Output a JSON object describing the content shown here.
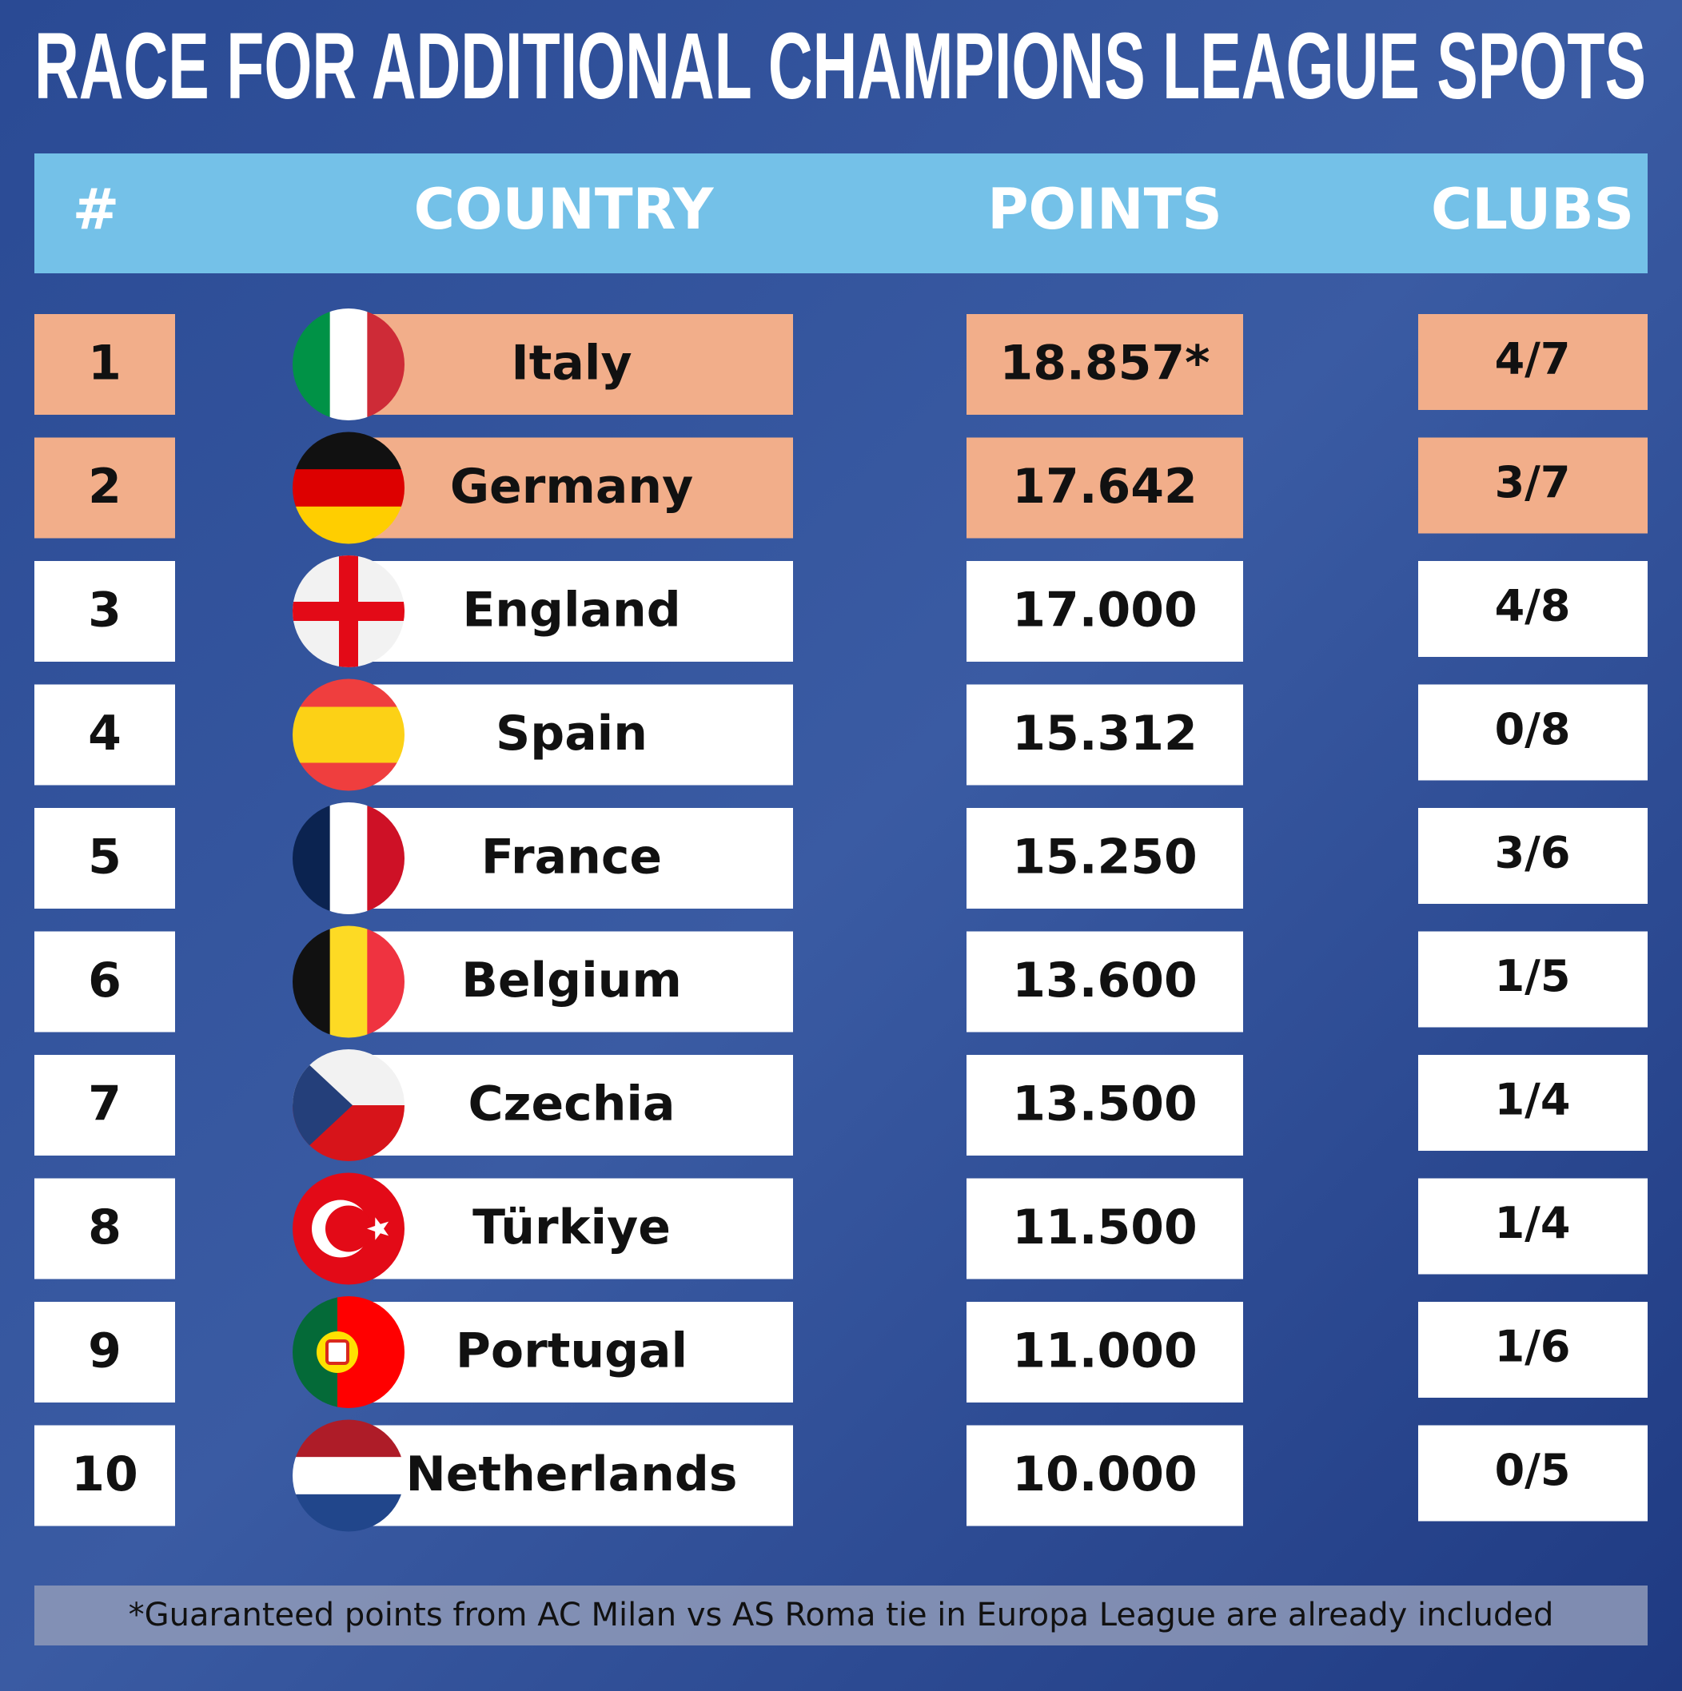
{
  "header": {
    "title": "RACE FOR ADDITIONAL CHAMPIONS LEAGUE SPOTS"
  },
  "table": {
    "columns": [
      "#",
      "COUNTRY",
      "POINTS",
      "CLUBS"
    ],
    "rows": [
      {
        "rank": 1,
        "country": "Italy",
        "points": "18.857*",
        "clubs": "4/7",
        "fill": "#f2ae8a"
      },
      {
        "rank": 2,
        "country": "Germany",
        "points": "17.642",
        "clubs": "3/7",
        "fill": "#f2ae8a"
      },
      {
        "rank": 3,
        "country": "England",
        "points": "17.000",
        "clubs": "4/8",
        "fill": "#ffffff"
      },
      {
        "rank": 4,
        "country": "Spain",
        "points": "15.312",
        "clubs": "0/8",
        "fill": "#ffffff"
      },
      {
        "rank": 5,
        "country": "France",
        "points": "15.250",
        "clubs": "3/6",
        "fill": "#ffffff"
      },
      {
        "rank": 6,
        "country": "Belgium",
        "points": "13.600",
        "clubs": "1/5",
        "fill": "#ffffff"
      },
      {
        "rank": 7,
        "country": "Czechia",
        "points": "13.500",
        "clubs": "1/4",
        "fill": "#ffffff"
      },
      {
        "rank": 8,
        "country": "Türkiye",
        "points": "11.500",
        "clubs": "1/4",
        "fill": "#ffffff"
      },
      {
        "rank": 9,
        "country": "Portugal",
        "points": "11.000",
        "clubs": "1/6",
        "fill": "#ffffff"
      },
      {
        "rank": 10,
        "country": "Netherlands",
        "points": "10.000",
        "clubs": "0/5",
        "fill": "#ffffff"
      }
    ]
  },
  "footnote": "*Guaranteed points from AC Milan vs AS Roma tie in Europa League are already included"
}
